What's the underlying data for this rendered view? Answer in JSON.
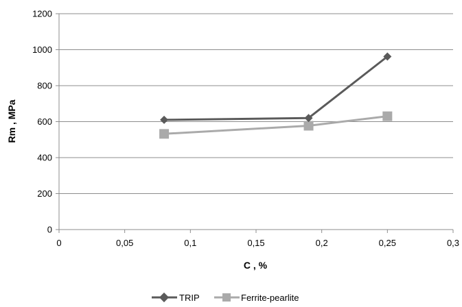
{
  "chart_data": {
    "type": "line",
    "title": "",
    "xlabel": "C , %",
    "ylabel": "Rm , MPa",
    "xlim": [
      0,
      0.3
    ],
    "ylim": [
      0,
      1200
    ],
    "x_ticks": [
      0,
      0.05,
      0.1,
      0.15,
      0.2,
      0.25,
      0.3
    ],
    "x_tick_labels": [
      "0",
      "0,05",
      "0,1",
      "0,15",
      "0,2",
      "0,25",
      "0,3"
    ],
    "y_ticks": [
      0,
      200,
      400,
      600,
      800,
      1000,
      1200
    ],
    "y_tick_labels": [
      "0",
      "200",
      "400",
      "600",
      "800",
      "1000",
      "1200"
    ],
    "grid": "horizontal",
    "legend_position": "bottom",
    "series": [
      {
        "name": "TRIP",
        "marker": "diamond",
        "color": "#5a5a5a",
        "points": [
          {
            "x": 0.08,
            "y": 610
          },
          {
            "x": 0.19,
            "y": 620
          },
          {
            "x": 0.25,
            "y": 962
          }
        ]
      },
      {
        "name": "Ferrite-pearlite",
        "marker": "square",
        "color": "#aaaaaa",
        "points": [
          {
            "x": 0.08,
            "y": 532
          },
          {
            "x": 0.19,
            "y": 577
          },
          {
            "x": 0.25,
            "y": 630
          }
        ]
      }
    ]
  }
}
